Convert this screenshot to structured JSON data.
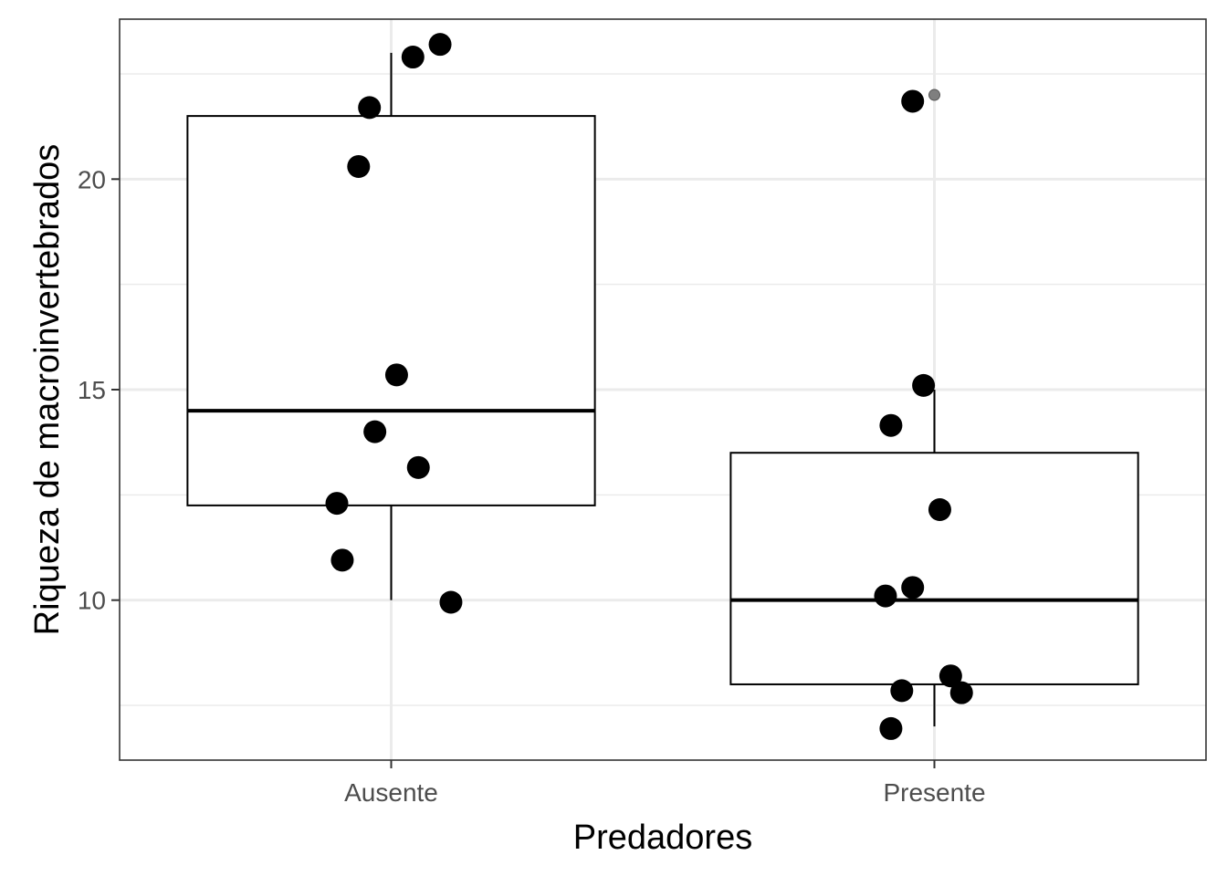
{
  "chart_data": {
    "type": "box",
    "xlabel": "Predadores",
    "ylabel": "Riqueza de macroinvertebrados",
    "categories": [
      "Ausente",
      "Presente"
    ],
    "ylim": [
      6.2,
      23.8
    ],
    "y_ticks": [
      10,
      15,
      20
    ],
    "y_minor_ticks": [
      7.5,
      12.5,
      17.5,
      22.5
    ],
    "grid": true,
    "boxes": [
      {
        "category": "Ausente",
        "whisker_low": 10,
        "q1": 12.25,
        "median": 14.5,
        "q3": 21.5,
        "whisker_high": 23,
        "outliers": []
      },
      {
        "category": "Presente",
        "whisker_low": 7,
        "q1": 8,
        "median": 10,
        "q3": 13.5,
        "whisker_high": 15,
        "outliers": [
          22
        ]
      }
    ],
    "points": [
      {
        "category": "Ausente",
        "jitter": 0.09,
        "y": 23.2
      },
      {
        "category": "Ausente",
        "jitter": 0.04,
        "y": 22.9
      },
      {
        "category": "Ausente",
        "jitter": -0.04,
        "y": 21.7
      },
      {
        "category": "Ausente",
        "jitter": -0.06,
        "y": 20.3
      },
      {
        "category": "Ausente",
        "jitter": 0.01,
        "y": 15.35
      },
      {
        "category": "Ausente",
        "jitter": -0.03,
        "y": 14.0
      },
      {
        "category": "Ausente",
        "jitter": 0.05,
        "y": 13.15
      },
      {
        "category": "Ausente",
        "jitter": -0.1,
        "y": 12.3
      },
      {
        "category": "Ausente",
        "jitter": -0.09,
        "y": 10.95
      },
      {
        "category": "Ausente",
        "jitter": 0.11,
        "y": 9.95
      },
      {
        "category": "Presente",
        "jitter": -0.04,
        "y": 21.85
      },
      {
        "category": "Presente",
        "jitter": -0.02,
        "y": 15.1
      },
      {
        "category": "Presente",
        "jitter": -0.08,
        "y": 14.15
      },
      {
        "category": "Presente",
        "jitter": 0.01,
        "y": 12.15
      },
      {
        "category": "Presente",
        "jitter": -0.04,
        "y": 10.3
      },
      {
        "category": "Presente",
        "jitter": -0.09,
        "y": 10.1
      },
      {
        "category": "Presente",
        "jitter": 0.03,
        "y": 8.2
      },
      {
        "category": "Presente",
        "jitter": -0.06,
        "y": 7.85
      },
      {
        "category": "Presente",
        "jitter": 0.05,
        "y": 7.8
      },
      {
        "category": "Presente",
        "jitter": -0.08,
        "y": 6.95
      }
    ],
    "colors": {
      "points": "#000000",
      "outlier": "#7f7f7f",
      "box_stroke": "#000000",
      "grid": "#ebebeb",
      "panel_border": "#333333",
      "tick_label": "#4d4d4d"
    }
  }
}
